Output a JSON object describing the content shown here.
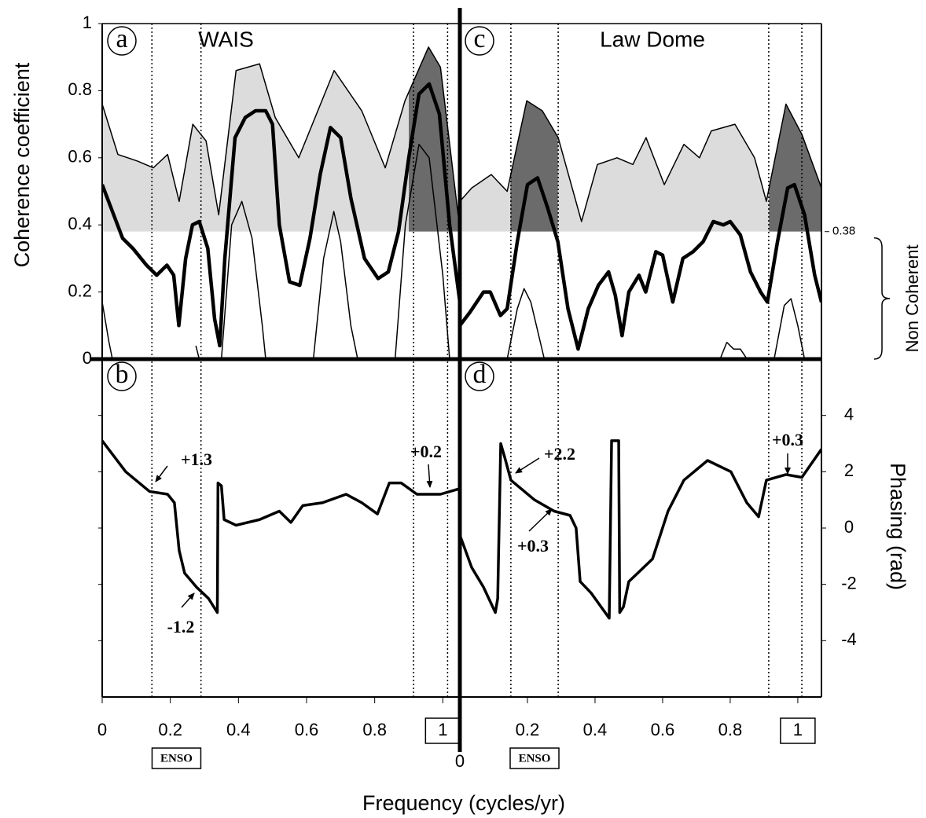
{
  "chart_data": [
    {
      "type": "line",
      "panel_label": "a",
      "title": "WAIS",
      "ylabel": "Coherence coefficient",
      "xlim": [
        0,
        1.05
      ],
      "ylim": [
        0,
        1
      ],
      "yticks": [
        0,
        0.2,
        0.4,
        0.6,
        0.8,
        1
      ],
      "threshold": 0.38,
      "dark_fill": "#6b6b6b",
      "dark_ranges": [
        [
          0.9,
          1.05
        ]
      ],
      "series": [
        {
          "color": "#000000",
          "width": 1.5,
          "fill": "#dcdcdc",
          "x": [
            0,
            0.046,
            0.104,
            0.15,
            0.192,
            0.226,
            0.266,
            0.305,
            0.342,
            0.393,
            0.462,
            0.508,
            0.577,
            0.681,
            0.762,
            0.831,
            0.889,
            0.958,
            0.993,
            1.039,
            1.05
          ],
          "values": [
            0.76,
            0.61,
            0.59,
            0.57,
            0.61,
            0.47,
            0.7,
            0.65,
            0.43,
            0.86,
            0.88,
            0.72,
            0.6,
            0.86,
            0.74,
            0.57,
            0.77,
            0.93,
            0.87,
            0.48,
            0.39
          ]
        },
        {
          "color": "#000000",
          "width": 4.5,
          "x": [
            0,
            0.03,
            0.06,
            0.09,
            0.13,
            0.16,
            0.19,
            0.21,
            0.225,
            0.245,
            0.265,
            0.285,
            0.31,
            0.33,
            0.345,
            0.36,
            0.39,
            0.42,
            0.45,
            0.48,
            0.5,
            0.52,
            0.55,
            0.58,
            0.61,
            0.64,
            0.67,
            0.7,
            0.73,
            0.77,
            0.81,
            0.84,
            0.87,
            0.9,
            0.93,
            0.96,
            0.99,
            1.02,
            1.05
          ],
          "values": [
            0.52,
            0.44,
            0.36,
            0.33,
            0.28,
            0.25,
            0.28,
            0.25,
            0.1,
            0.3,
            0.4,
            0.41,
            0.33,
            0.12,
            0.04,
            0.3,
            0.66,
            0.72,
            0.74,
            0.74,
            0.7,
            0.4,
            0.23,
            0.22,
            0.36,
            0.55,
            0.69,
            0.66,
            0.48,
            0.3,
            0.24,
            0.26,
            0.38,
            0.6,
            0.79,
            0.82,
            0.73,
            0.4,
            0.17
          ]
        },
        {
          "color": "#000000",
          "width": 1.5,
          "x": [
            0,
            0.02,
            0.03,
            0.2,
            0.275,
            0.285,
            0.3,
            0.35,
            0.38,
            0.41,
            0.44,
            0.47,
            0.48,
            0.55,
            0.62,
            0.65,
            0.68,
            0.7,
            0.73,
            0.75,
            0.8,
            0.86,
            0.89,
            0.93,
            0.96,
            1.0,
            1.02
          ],
          "values": [
            0.17,
            0.05,
            0,
            null,
            0.04,
            0,
            null,
            0,
            0.4,
            0.47,
            0.36,
            0.1,
            0,
            null,
            0,
            0.3,
            0.44,
            0.35,
            0.1,
            0,
            null,
            0,
            0.4,
            0.64,
            0.6,
            0.25,
            0
          ]
        }
      ]
    },
    {
      "type": "line",
      "panel_label": "b",
      "xlabel": "Frequency (cycles/yr)",
      "xlim": [
        0,
        1.05
      ],
      "ylim": [
        -6,
        6
      ],
      "xticks": [
        0,
        0.2,
        0.4,
        0.6,
        0.8,
        1
      ],
      "yticks": [
        -4,
        -2,
        0,
        2,
        4
      ],
      "show_ytick_labels": false,
      "bands": [
        {
          "range": [
            0.146,
            0.29
          ],
          "label": "ENSO"
        },
        {
          "range": [
            0.914,
            1.014
          ]
        }
      ],
      "annotations": [
        "+1.3",
        "-1.2",
        "+0.2"
      ],
      "series": [
        {
          "color": "#000000",
          "width": 3.5,
          "x": [
            0,
            0.069,
            0.139,
            0.192,
            0.212,
            0.226,
            0.242,
            0.277,
            0.312,
            0.338,
            0.34,
            0.35,
            0.358,
            0.393,
            0.462,
            0.52,
            0.554,
            0.589,
            0.647,
            0.716,
            0.762,
            0.808,
            0.843,
            0.878,
            0.924,
            0.993,
            1.05
          ],
          "values": [
            3.1,
            2.0,
            1.3,
            1.2,
            0.9,
            -0.8,
            -1.6,
            -2.1,
            -2.5,
            -3.0,
            1.6,
            1.5,
            0.3,
            0.1,
            0.3,
            0.6,
            0.2,
            0.8,
            0.9,
            1.2,
            0.9,
            0.5,
            1.6,
            1.6,
            1.2,
            1.2,
            1.4
          ]
        }
      ]
    },
    {
      "type": "line",
      "panel_label": "c",
      "title": "Law Dome",
      "xlim": [
        0,
        1.07
      ],
      "ylim": [
        0,
        1
      ],
      "threshold": 0.38,
      "threshold_note": "Non Coherent",
      "dark_fill": "#6b6b6b",
      "dark_ranges": [
        [
          0.15,
          0.29
        ],
        [
          0.915,
          1.07
        ]
      ],
      "series": [
        {
          "color": "#000000",
          "width": 1.5,
          "fill": "#dcdcdc",
          "x": [
            0,
            0.035,
            0.093,
            0.14,
            0.198,
            0.244,
            0.291,
            0.36,
            0.407,
            0.465,
            0.512,
            0.551,
            0.605,
            0.663,
            0.709,
            0.744,
            0.814,
            0.872,
            0.907,
            0.965,
            1.012,
            1.07
          ],
          "values": [
            0.47,
            0.51,
            0.55,
            0.5,
            0.77,
            0.74,
            0.66,
            0.41,
            0.58,
            0.6,
            0.58,
            0.66,
            0.52,
            0.64,
            0.6,
            0.68,
            0.7,
            0.6,
            0.47,
            0.76,
            0.67,
            0.51
          ]
        },
        {
          "color": "#000000",
          "width": 4.5,
          "x": [
            0,
            0.03,
            0.07,
            0.09,
            0.12,
            0.14,
            0.17,
            0.2,
            0.23,
            0.26,
            0.29,
            0.32,
            0.35,
            0.38,
            0.41,
            0.44,
            0.46,
            0.48,
            0.5,
            0.53,
            0.55,
            0.58,
            0.6,
            0.63,
            0.66,
            0.69,
            0.72,
            0.75,
            0.78,
            0.8,
            0.83,
            0.86,
            0.89,
            0.91,
            0.94,
            0.97,
            0.99,
            1.02,
            1.05,
            1.07
          ],
          "values": [
            0.1,
            0.14,
            0.2,
            0.2,
            0.13,
            0.15,
            0.35,
            0.52,
            0.54,
            0.45,
            0.35,
            0.15,
            0.03,
            0.15,
            0.22,
            0.26,
            0.19,
            0.07,
            0.2,
            0.25,
            0.2,
            0.32,
            0.31,
            0.17,
            0.3,
            0.32,
            0.35,
            0.41,
            0.4,
            0.41,
            0.37,
            0.26,
            0.2,
            0.17,
            0.35,
            0.51,
            0.52,
            0.43,
            0.25,
            0.17
          ]
        },
        {
          "color": "#000000",
          "width": 1.5,
          "x": [
            0.14,
            0.17,
            0.19,
            0.21,
            0.25,
            0.5,
            0.77,
            0.79,
            0.81,
            0.83,
            0.85,
            0.9,
            0.93,
            0.96,
            0.98,
            1.0,
            1.02
          ],
          "values": [
            0,
            0.15,
            0.21,
            0.17,
            0,
            null,
            0,
            0.05,
            0.03,
            0.03,
            0,
            null,
            0,
            0.16,
            0.18,
            0.1,
            0
          ]
        }
      ]
    },
    {
      "type": "line",
      "panel_label": "d",
      "ylabel": "Phasing (rad)",
      "xlim": [
        0,
        1.07
      ],
      "ylim": [
        -6,
        6
      ],
      "xticks": [
        0,
        0.2,
        0.4,
        0.6,
        0.8,
        1
      ],
      "yticks": [
        -4,
        -2,
        0,
        2,
        4
      ],
      "show_ytick_labels": true,
      "bands": [
        {
          "range": [
            0.151,
            0.291
          ],
          "label": "ENSO"
        },
        {
          "range": [
            0.914,
            1.012
          ]
        }
      ],
      "annotations": [
        "+2.2",
        "+0.3",
        "+0.3"
      ],
      "series": [
        {
          "color": "#000000",
          "width": 3.5,
          "x": [
            0,
            0.035,
            0.07,
            0.105,
            0.112,
            0.121,
            0.133,
            0.151,
            0.221,
            0.279,
            0.326,
            0.344,
            0.356,
            0.388,
            0.442,
            0.449,
            0.47,
            0.473,
            0.484,
            0.5,
            0.57,
            0.616,
            0.663,
            0.733,
            0.802,
            0.849,
            0.884,
            0.907,
            0.965,
            1.012,
            1.07
          ],
          "values": [
            -0.25,
            -1.4,
            -2.1,
            -3.0,
            -2.5,
            3.0,
            2.5,
            1.7,
            1.0,
            0.6,
            0.45,
            0.0,
            -1.9,
            -2.3,
            -3.2,
            3.1,
            3.1,
            -3.0,
            -2.8,
            -1.9,
            -1.1,
            0.6,
            1.7,
            2.4,
            2.0,
            0.9,
            0.4,
            1.7,
            1.9,
            1.8,
            2.8
          ]
        }
      ]
    }
  ]
}
